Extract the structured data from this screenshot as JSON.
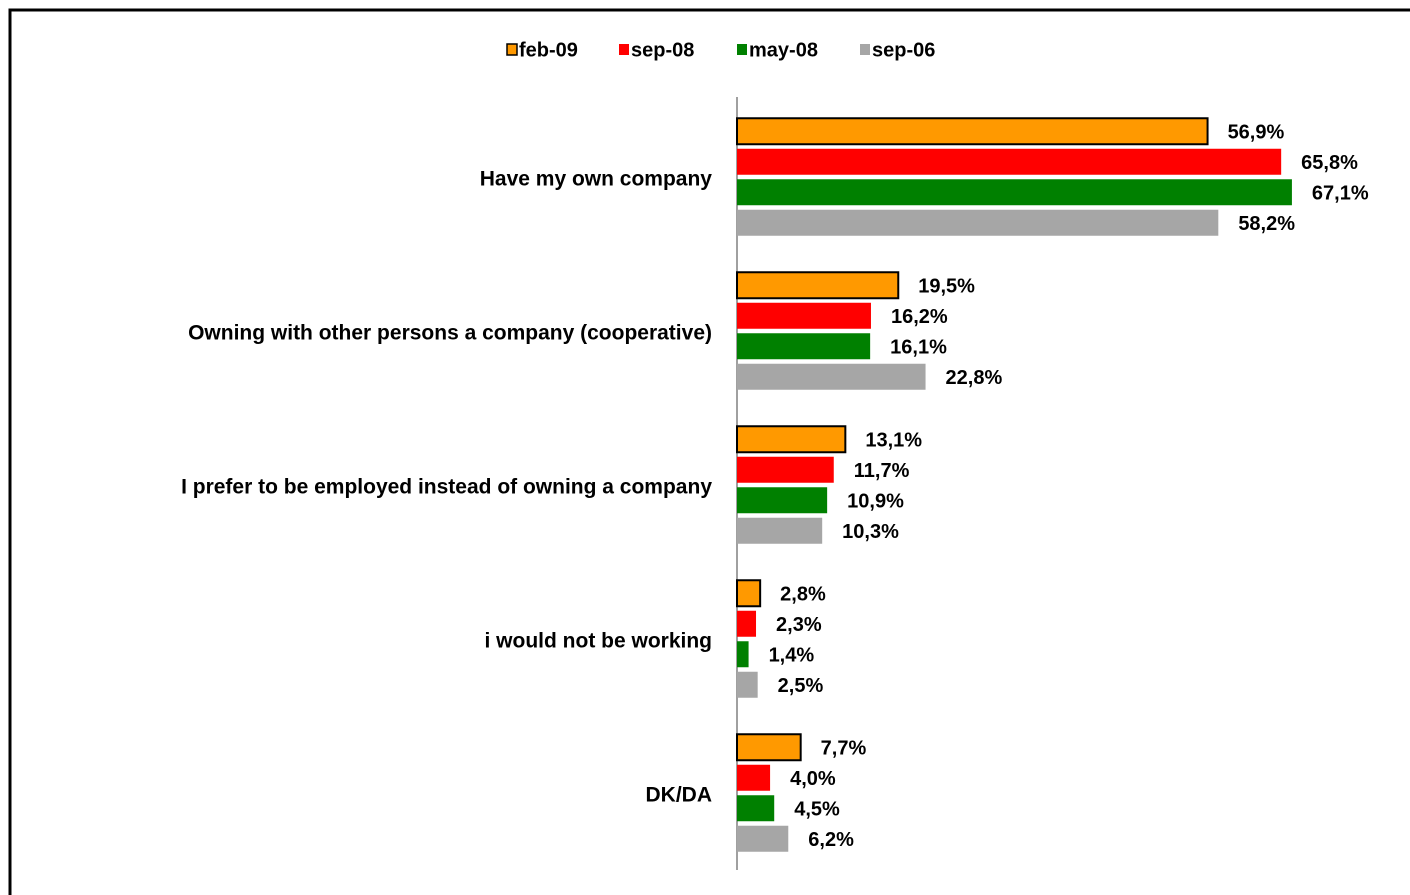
{
  "chart_data": {
    "type": "bar",
    "orientation": "horizontal",
    "legend": "top",
    "categories": [
      "Have my own company",
      "Owning with other persons  a company (cooperative)",
      "I prefer to be employed instead  of owning a company",
      "i would not be working",
      "DK/DA"
    ],
    "series": [
      {
        "name": "feb-09",
        "color": "#FF9900",
        "edgecolor": "#000000",
        "values": [
          56.9,
          19.5,
          13.1,
          2.8,
          7.7
        ],
        "value_labels": [
          "56,9%",
          "19,5%",
          "13,1%",
          "2,8%",
          "7,7%"
        ]
      },
      {
        "name": "sep-08",
        "color": "#FF0000",
        "values": [
          65.8,
          16.2,
          11.7,
          2.3,
          4.0
        ],
        "value_labels": [
          "65,8%",
          "16,2%",
          "11,7%",
          "2,3%",
          "4,0%"
        ]
      },
      {
        "name": "may-08",
        "color": "#008000",
        "values": [
          67.1,
          16.1,
          10.9,
          1.4,
          4.5
        ],
        "value_labels": [
          "67,1%",
          "16,1%",
          "10,9%",
          "1,4%",
          "4,5%"
        ]
      },
      {
        "name": "sep-06",
        "color": "#A6A6A6",
        "values": [
          58.2,
          22.8,
          10.3,
          2.5,
          6.2
        ],
        "value_labels": [
          "58,2%",
          "22,8%",
          "10,3%",
          "2,5%",
          "6,2%"
        ]
      }
    ]
  }
}
